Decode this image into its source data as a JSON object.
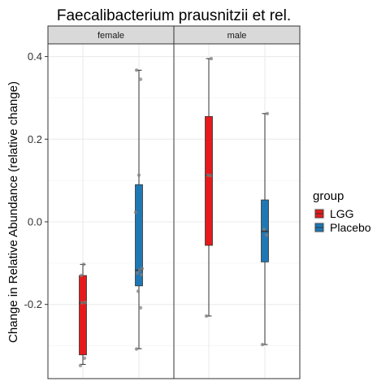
{
  "chart_data": {
    "type": "box",
    "title": "Faecalibacterium prausnitzii et rel.",
    "ylabel": "Change in Relative Abundance (relative change)",
    "xlabel": "",
    "ylim": [
      -0.35,
      0.42
    ],
    "yticks": [
      -0.2,
      0.0,
      0.2,
      0.4
    ],
    "ytick_labels": [
      "-0.2",
      "0.0",
      "0.2",
      "0.4"
    ],
    "grid": true,
    "legend_position": "right",
    "legend_title": "group",
    "groups": [
      {
        "name": "LGG",
        "color": "#e41a1c"
      },
      {
        "name": "Placebo",
        "color": "#1f78b4"
      }
    ],
    "panels": [
      {
        "label": "female",
        "boxes": [
          {
            "group": "LGG",
            "min": -0.345,
            "q1": -0.322,
            "median": -0.196,
            "q3": -0.13,
            "max": -0.103,
            "points": [
              -0.348,
              -0.33,
              -0.196,
              -0.195,
              -0.13,
              -0.103
            ]
          },
          {
            "group": "Placebo",
            "min": -0.307,
            "q1": -0.155,
            "median": -0.117,
            "q3": 0.09,
            "max": 0.367,
            "points": [
              -0.308,
              -0.208,
              -0.168,
              -0.128,
              -0.124,
              -0.117,
              -0.113,
              0.023,
              0.113,
              0.345,
              0.367
            ]
          }
        ]
      },
      {
        "label": "male",
        "boxes": [
          {
            "group": "LGG",
            "min": -0.228,
            "q1": -0.057,
            "median": 0.113,
            "q3": 0.255,
            "max": 0.395,
            "points": [
              -0.228,
              0.112,
              0.113,
              0.395
            ]
          },
          {
            "group": "Placebo",
            "min": -0.297,
            "q1": -0.097,
            "median": -0.023,
            "q3": 0.053,
            "max": 0.262,
            "points": [
              -0.297,
              -0.032,
              -0.018,
              0.262
            ]
          }
        ]
      }
    ]
  }
}
